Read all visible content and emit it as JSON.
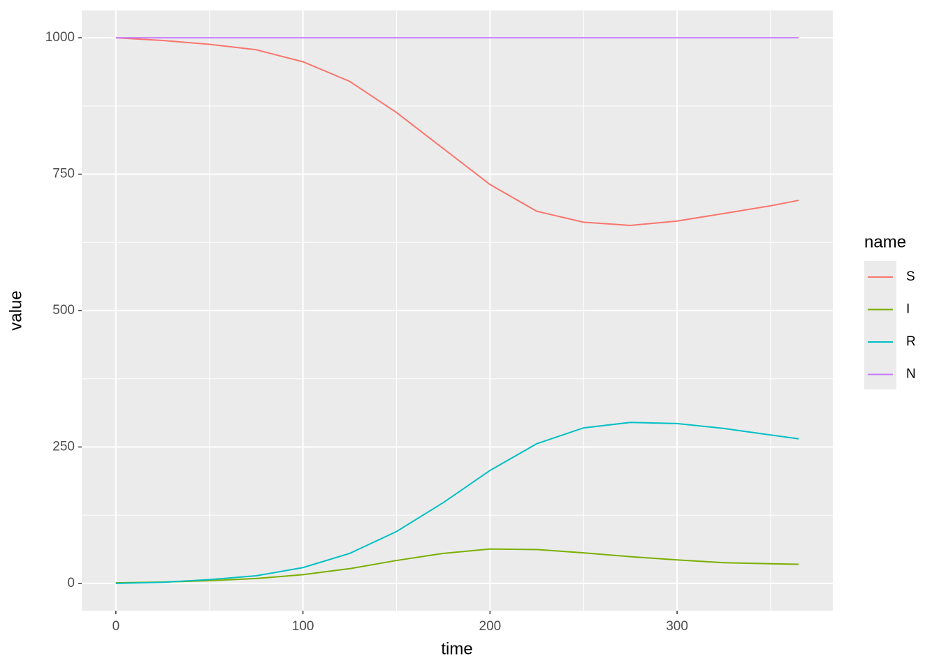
{
  "chart_data": {
    "type": "line",
    "x_label": "time",
    "y_label": "value",
    "legend_title": "name",
    "x": [
      0,
      25,
      50,
      75,
      100,
      125,
      150,
      175,
      200,
      225,
      250,
      275,
      300,
      325,
      350,
      365
    ],
    "series": [
      {
        "name": "S",
        "color": "#F8766D",
        "values": [
          1000,
          995,
          988,
          978,
          956,
          920,
          863,
          797,
          731,
          682,
          662,
          656,
          664,
          678,
          692,
          702
        ]
      },
      {
        "name": "I",
        "color": "#7CAE00",
        "values": [
          1,
          2.5,
          5,
          9,
          16,
          27,
          42,
          55,
          63,
          62,
          56,
          49,
          43,
          38,
          36,
          35
        ]
      },
      {
        "name": "R",
        "color": "#00BFC4",
        "values": [
          0,
          2,
          7,
          14,
          29,
          55,
          95,
          148,
          207,
          256,
          285,
          295,
          293,
          284,
          272,
          265
        ]
      },
      {
        "name": "N",
        "color": "#C77CFF",
        "values": [
          1000,
          1000,
          1000,
          1000,
          1000,
          1000,
          1000,
          1000,
          1000,
          1000,
          1000,
          1000,
          1000,
          1000,
          1000,
          1000
        ]
      }
    ],
    "xlim": [
      -18.25,
      383.25
    ],
    "ylim": [
      -50,
      1050
    ],
    "xticks": [
      0,
      100,
      200,
      300
    ],
    "yticks": [
      0,
      250,
      500,
      750,
      1000
    ],
    "minor_xgrid": [
      50,
      150,
      250,
      350
    ],
    "minor_ygrid": [
      125,
      375,
      625,
      875
    ],
    "grid": true,
    "legend": "right"
  }
}
